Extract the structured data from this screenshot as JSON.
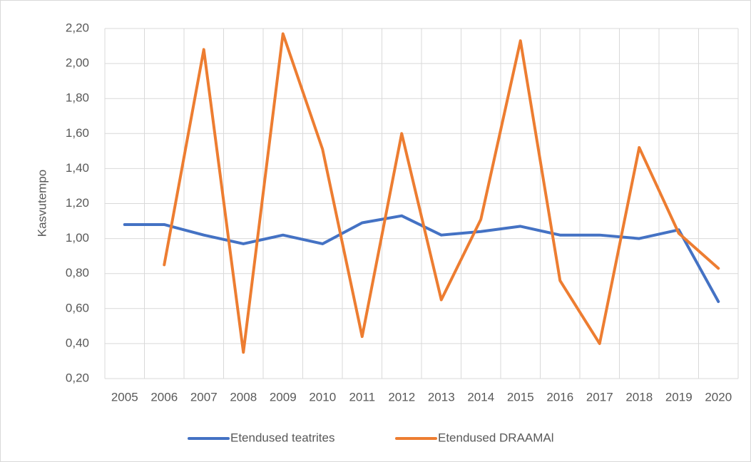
{
  "chart_data": {
    "type": "line",
    "y_label": "Kasvutempo",
    "categories": [
      "2005",
      "2006",
      "2007",
      "2008",
      "2009",
      "2010",
      "2011",
      "2012",
      "2013",
      "2014",
      "2015",
      "2016",
      "2017",
      "2018",
      "2019",
      "2020"
    ],
    "series": [
      {
        "name": "Etendused teatrites",
        "color": "#4472c4",
        "values": [
          1.08,
          1.08,
          1.02,
          0.97,
          1.02,
          0.97,
          1.09,
          1.13,
          1.02,
          1.04,
          1.07,
          1.02,
          1.02,
          1.0,
          1.05,
          0.64
        ]
      },
      {
        "name": "Etendused DRAAMAl",
        "color": "#ed7d31",
        "values": [
          null,
          0.85,
          2.08,
          0.35,
          2.17,
          1.51,
          0.44,
          1.6,
          0.65,
          1.11,
          2.13,
          0.76,
          0.4,
          1.52,
          1.03,
          0.83
        ]
      }
    ],
    "ylim": [
      0.2,
      2.2
    ],
    "yticks": [
      {
        "value": 0.2,
        "label": "0,20"
      },
      {
        "value": 0.4,
        "label": "0,40"
      },
      {
        "value": 0.6,
        "label": "0,60"
      },
      {
        "value": 0.8,
        "label": "0,80"
      },
      {
        "value": 1.0,
        "label": "1,00"
      },
      {
        "value": 1.2,
        "label": "1,20"
      },
      {
        "value": 1.4,
        "label": "1,40"
      },
      {
        "value": 1.6,
        "label": "1,60"
      },
      {
        "value": 1.8,
        "label": "1,80"
      },
      {
        "value": 2.0,
        "label": "2,00"
      },
      {
        "value": 2.2,
        "label": "2,20"
      }
    ],
    "grid": true,
    "legend": "bottom"
  }
}
